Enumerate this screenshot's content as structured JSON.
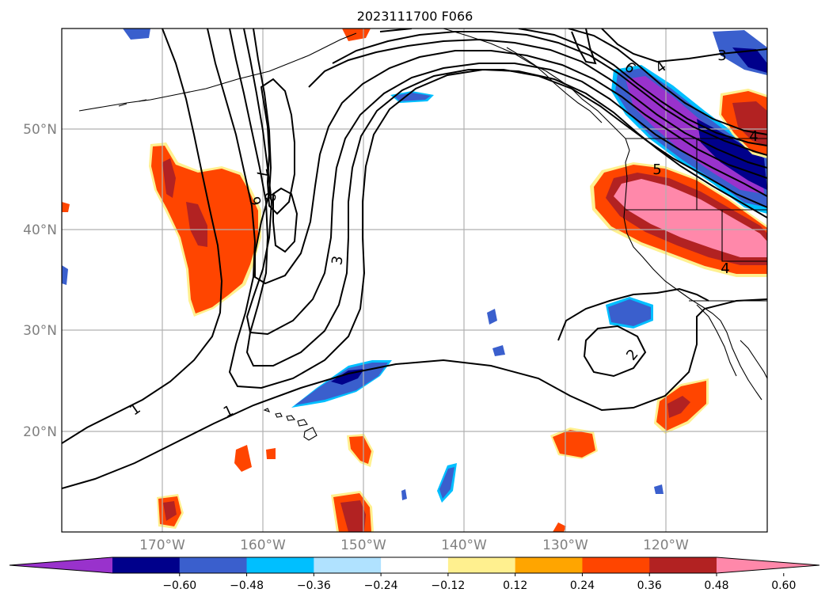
{
  "title": "2023111700 F066",
  "map": {
    "lat_labels": [
      "50°N",
      "40°N",
      "30°N",
      "20°N"
    ],
    "lon_labels": [
      "170°W",
      "160°W",
      "150°W",
      "140°W",
      "130°W",
      "120°W"
    ],
    "contour_labels": [
      "7",
      "8",
      "9",
      "3",
      "1",
      "1",
      "2",
      "6",
      "4",
      "3",
      "4",
      "5",
      "4"
    ]
  },
  "colorbar": {
    "extend": "both",
    "colors": [
      "#9932cc",
      "#00008b",
      "#3a5fcd",
      "#00bfff",
      "#b0e2ff",
      "#ffffff",
      "#fff08f",
      "#ffa500",
      "#ff4500",
      "#b22222",
      "#ff88aa"
    ],
    "tick_labels": [
      "−0.60",
      "−0.48",
      "−0.36",
      "−0.24",
      "−0.12",
      "0.12",
      "0.24",
      "0.36",
      "0.48",
      "0.60"
    ]
  }
}
